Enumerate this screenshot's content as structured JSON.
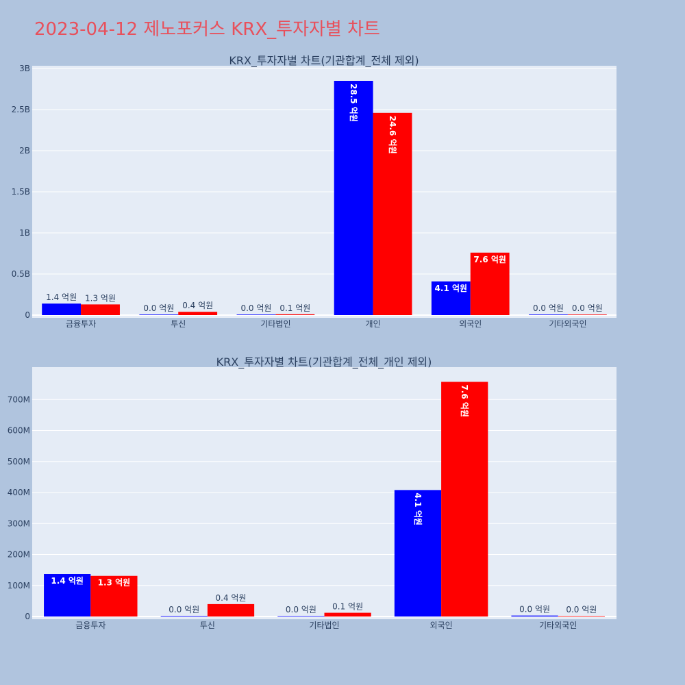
{
  "title": "2023-04-12 제노포커스 KRX_투자자별 차트",
  "colors": {
    "series_a": "#0000ff",
    "series_b": "#ff0000",
    "plot_bg": "#e5ecf6",
    "page_bg": "#b0c4de"
  },
  "chart_data": [
    {
      "type": "bar",
      "title": "KRX_투자자별 차트(기관합계_전체 제외)",
      "categories": [
        "금융투자",
        "투신",
        "기타법인",
        "개인",
        "외국인",
        "기타외국인"
      ],
      "series": [
        {
          "color": "#0000ff",
          "values": [
            140000000,
            2000000,
            1000000,
            2850000000,
            410000000,
            1000000
          ],
          "labels": [
            "1.4 억원",
            "0.0 억원",
            "0.0 억원",
            "28.5 억원",
            "4.1 억원",
            "0.0 억원"
          ]
        },
        {
          "color": "#ff0000",
          "values": [
            130000000,
            40000000,
            10000000,
            2460000000,
            760000000,
            1000000
          ],
          "labels": [
            "1.3 억원",
            "0.4 억원",
            "0.1 억원",
            "24.6 억원",
            "7.6 억원",
            "0.0 억원"
          ]
        }
      ],
      "ylim": [
        0,
        3000000000
      ],
      "yticks": [
        0,
        500000000,
        1000000000,
        1500000000,
        2000000000,
        2500000000,
        3000000000
      ],
      "yticklabels": [
        "0",
        "0.5B",
        "1B",
        "1.5B",
        "2B",
        "2.5B",
        "3B"
      ],
      "grid": true
    },
    {
      "type": "bar",
      "title": "KRX_투자자별 차트(기관합계_전체_개인 제외)",
      "categories": [
        "금융투자",
        "투신",
        "기타법인",
        "외국인",
        "기타외국인"
      ],
      "series": [
        {
          "color": "#0000ff",
          "values": [
            137000000,
            2000000,
            1000000,
            408000000,
            3000000
          ],
          "labels": [
            "1.4 억원",
            "0.0 억원",
            "0.0 억원",
            "4.1 억원",
            "0.0 억원"
          ]
        },
        {
          "color": "#ff0000",
          "values": [
            131000000,
            40000000,
            12000000,
            757000000,
            1000000
          ],
          "labels": [
            "1.3 억원",
            "0.4 억원",
            "0.1 억원",
            "7.6 억원",
            "0.0 억원"
          ]
        }
      ],
      "ylim": [
        0,
        800000000
      ],
      "yticks": [
        0,
        100000000,
        200000000,
        300000000,
        400000000,
        500000000,
        600000000,
        700000000
      ],
      "yticklabels": [
        "0",
        "100M",
        "200M",
        "300M",
        "400M",
        "500M",
        "600M",
        "700M"
      ],
      "grid": true
    }
  ]
}
